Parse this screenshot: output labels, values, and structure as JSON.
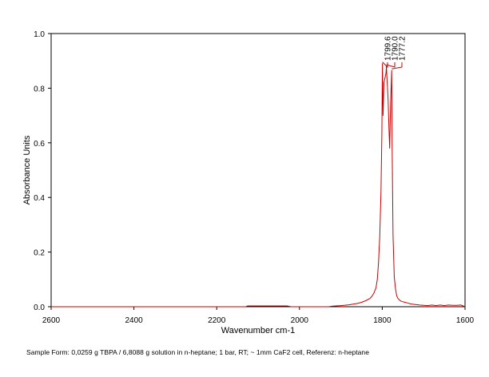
{
  "chart_data": {
    "type": "line",
    "title": "",
    "xlabel": "Wavenumber cm-1",
    "ylabel": "Absorbance Units",
    "xlim": [
      2600,
      1600
    ],
    "ylim": [
      0,
      1.0
    ],
    "x_reversed": true,
    "grid": false,
    "x_ticks": [
      2600,
      2400,
      2200,
      2000,
      1800,
      1600
    ],
    "x_tick_labels": [
      "2600",
      "2400",
      "2200",
      "2000",
      "1800",
      "1600"
    ],
    "y_ticks": [
      0,
      0.2,
      0.4,
      0.6,
      0.8,
      1.0
    ],
    "y_tick_labels": [
      "0.0",
      "0.2",
      "0.4",
      "0.6",
      "0.8",
      "1.0"
    ],
    "series": [
      {
        "color": "#cc0000",
        "x": [
          2600,
          2400,
          2200,
          2130,
          2125,
          2030,
          2020,
          1930,
          1920,
          1900,
          1880,
          1860,
          1850,
          1840,
          1830,
          1825,
          1820,
          1815,
          1812,
          1809,
          1806,
          1803,
          1801,
          1799.6,
          1798,
          1796,
          1793,
          1791,
          1790,
          1788,
          1786,
          1784,
          1782,
          1780,
          1778,
          1777.2,
          1776,
          1774,
          1771,
          1768,
          1765,
          1762,
          1758,
          1754,
          1750,
          1745,
          1740,
          1730,
          1720,
          1710,
          1700,
          1690,
          1680,
          1670,
          1660,
          1650,
          1640,
          1630,
          1620,
          1610,
          1600
        ],
        "y": [
          0.0,
          0.0,
          0.0,
          0.0,
          0.003,
          0.003,
          0.0,
          0.0,
          0.002,
          0.004,
          0.007,
          0.012,
          0.016,
          0.022,
          0.03,
          0.038,
          0.05,
          0.07,
          0.1,
          0.16,
          0.26,
          0.42,
          0.63,
          0.89,
          0.7,
          0.82,
          0.84,
          0.855,
          0.88,
          0.82,
          0.76,
          0.66,
          0.58,
          0.74,
          0.83,
          0.865,
          0.58,
          0.26,
          0.11,
          0.065,
          0.04,
          0.03,
          0.024,
          0.02,
          0.018,
          0.016,
          0.014,
          0.01,
          0.008,
          0.006,
          0.005,
          0.004,
          0.006,
          0.004,
          0.006,
          0.004,
          0.006,
          0.005,
          0.005,
          0.006,
          0.0
        ]
      }
    ],
    "annotations": [
      {
        "text": "1799.6",
        "x": 1799.6
      },
      {
        "text": "1790.0",
        "x": 1790.0
      },
      {
        "text": "1777.2",
        "x": 1777.2
      }
    ]
  },
  "caption": "Sample Form: 0,0259 g TBPA / 6,8088 g solution in n-heptane; 1 bar, RT; ~ 1mm CaF2 cell, Referenz: n-heptane"
}
